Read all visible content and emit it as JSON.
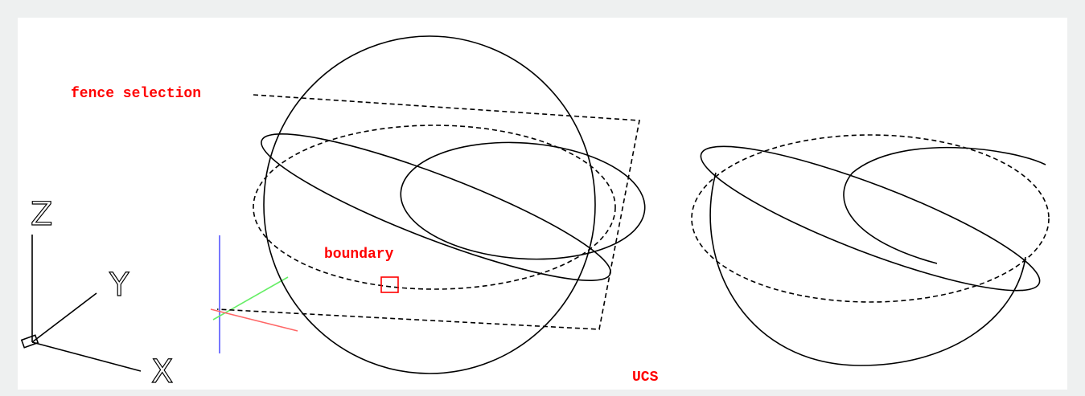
{
  "labels": {
    "fence_selection": "fence selection",
    "boundary": "boundary",
    "ucs": "UCS"
  },
  "axes": {
    "z": "Z",
    "y": "Y",
    "x": "X"
  }
}
